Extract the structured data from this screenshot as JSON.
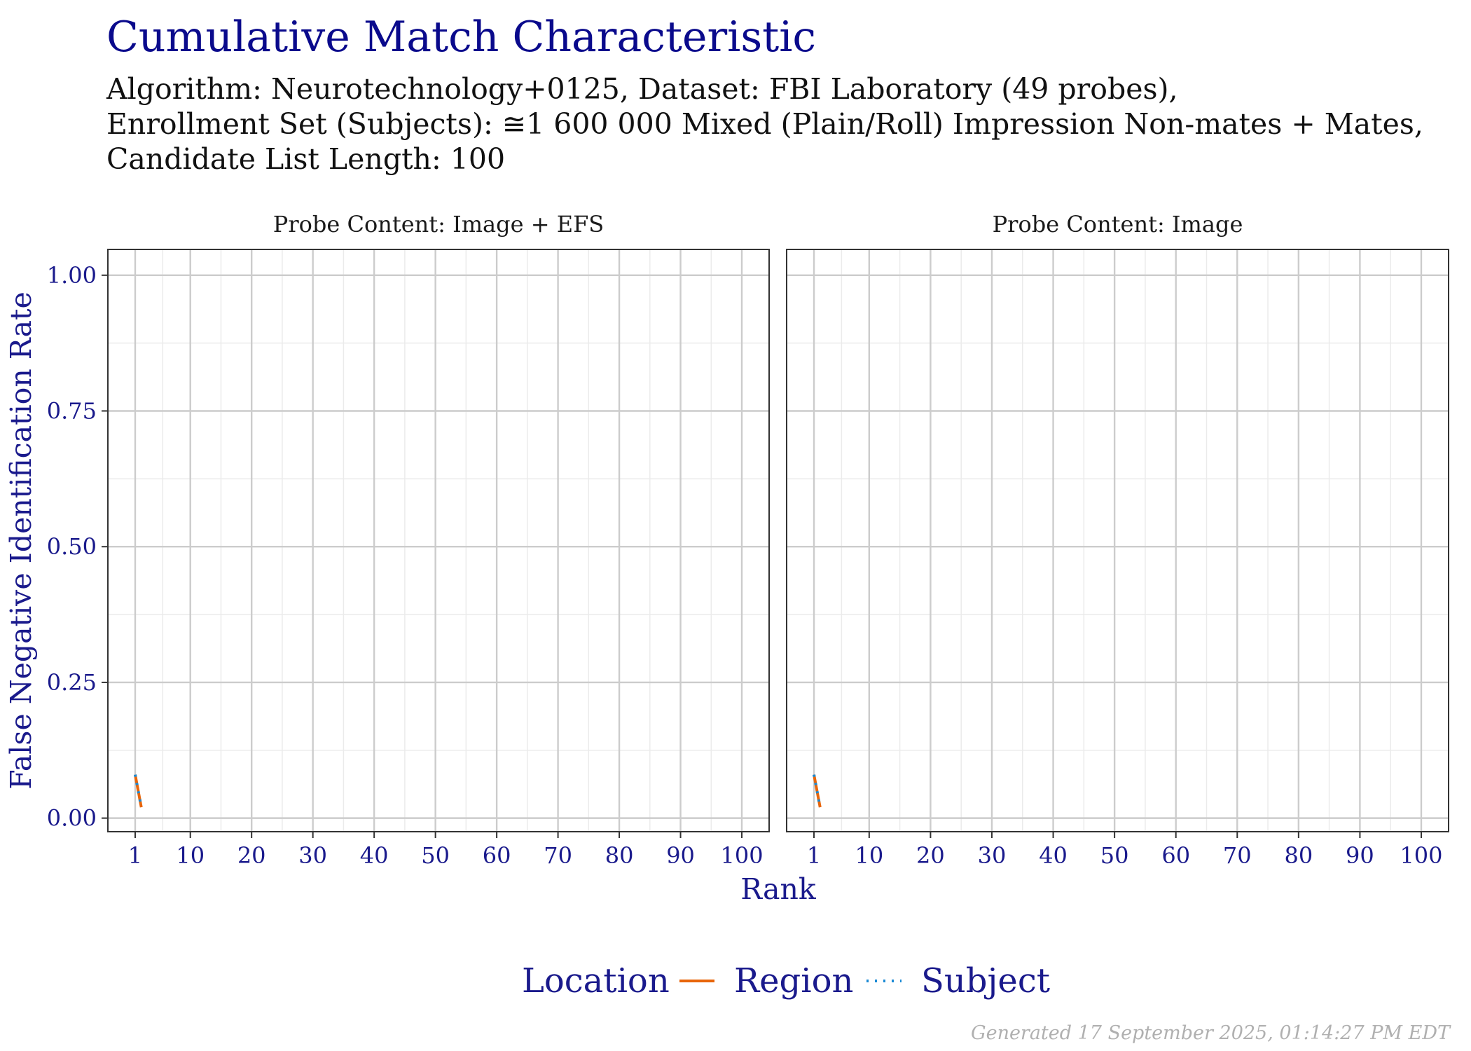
{
  "title": "Cumulative Match Characteristic",
  "subtitle_lines": [
    "Algorithm: Neurotechnology+0125, Dataset: FBI Laboratory (49 probes),",
    "Enrollment Set (Subjects): ≅1 600 000 Mixed (Plain/Roll) Impression Non-mates + Mates,",
    "Candidate List Length: 100"
  ],
  "footer": "Generated 17 September 2025, 01:14:27 PM EDT",
  "colors": {
    "title": "#0a0a8c",
    "region": "#e8650a",
    "subject": "#1a8ad4",
    "grid": "#cccccc"
  },
  "chart_data": {
    "type": "line",
    "xlabel": "Rank",
    "ylabel": "False Negative Identification Rate",
    "xlim": [
      1,
      100
    ],
    "ylim": [
      0,
      1
    ],
    "xticks": [
      1,
      10,
      20,
      30,
      40,
      50,
      60,
      70,
      80,
      90,
      100
    ],
    "xtick_labels": [
      "1",
      "10",
      "20",
      "30",
      "40",
      "50",
      "60",
      "70",
      "80",
      "90",
      "100"
    ],
    "yticks": [
      0,
      0.25,
      0.5,
      0.75,
      1
    ],
    "ytick_labels": [
      "0.00",
      "0.25",
      "0.50",
      "0.75",
      "1.00"
    ],
    "grid": true,
    "legend": {
      "title": "Location",
      "position": "bottom",
      "entries": [
        {
          "label": "Region",
          "linestyle": "solid"
        },
        {
          "label": "Subject",
          "linestyle": "dotted"
        }
      ]
    },
    "panels": [
      {
        "strip": "Probe Content: Image + EFS",
        "series": [
          {
            "name": "Region",
            "x": [
              1,
              2
            ],
            "y": [
              0.08,
              0.02
            ]
          },
          {
            "name": "Subject",
            "x": [
              1,
              2
            ],
            "y": [
              0.08,
              0.02
            ]
          }
        ]
      },
      {
        "strip": "Probe Content: Image",
        "series": [
          {
            "name": "Region",
            "x": [
              1,
              2
            ],
            "y": [
              0.08,
              0.02
            ]
          },
          {
            "name": "Subject",
            "x": [
              1,
              2
            ],
            "y": [
              0.08,
              0.02
            ]
          }
        ]
      }
    ]
  }
}
